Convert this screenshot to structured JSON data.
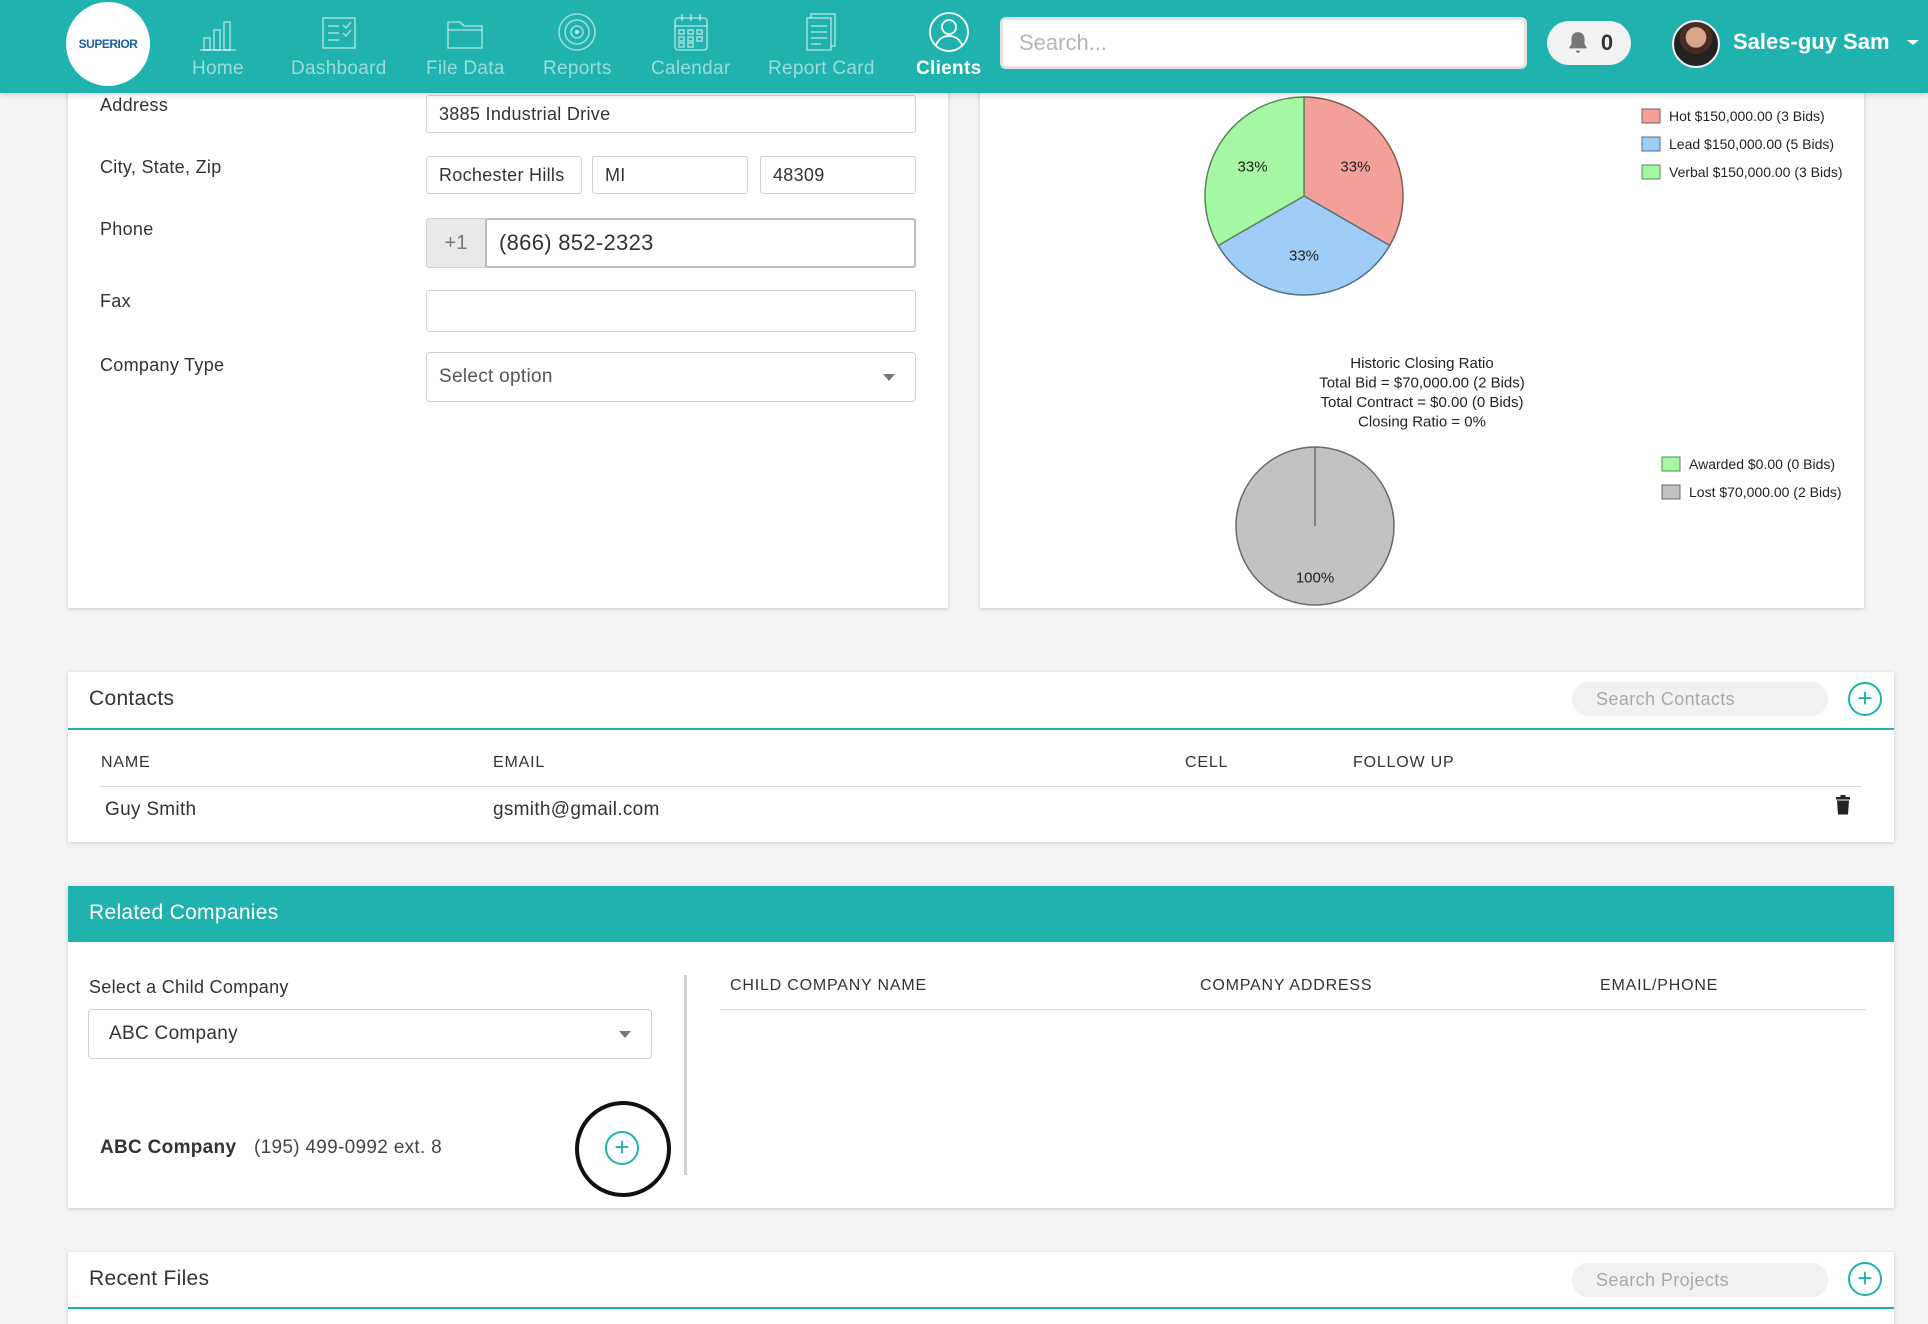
{
  "nav": {
    "logo_text": "SUPERIOR",
    "items": [
      {
        "label": "Home",
        "icon": "bar-chart-icon"
      },
      {
        "label": "Dashboard",
        "icon": "clipboard-icon"
      },
      {
        "label": "File Data",
        "icon": "folder-icon"
      },
      {
        "label": "Reports",
        "icon": "target-icon"
      },
      {
        "label": "Calendar",
        "icon": "calendar-icon"
      },
      {
        "label": "Report Card",
        "icon": "document-icon"
      },
      {
        "label": "Clients",
        "icon": "user-icon"
      }
    ],
    "active": "Clients",
    "search_placeholder": "Search...",
    "notification_count": "0",
    "user_name": "Sales-guy Sam",
    "accent_color": "#1fb2ae"
  },
  "company_form": {
    "address_label": "Address",
    "address_value": "3885 Industrial Drive",
    "city_state_zip_label": "City, State, Zip",
    "city_value": "Rochester Hills",
    "state_value": "MI",
    "zip_value": "48309",
    "phone_label": "Phone",
    "phone_prefix": "+1",
    "phone_value": "(866) 852-2323",
    "fax_label": "Fax",
    "fax_value": "",
    "company_type_label": "Company Type",
    "company_type_value": "Select option"
  },
  "chart_data": [
    {
      "type": "pie",
      "categories": [
        "Hot",
        "Lead",
        "Verbal"
      ],
      "values": [
        33,
        33,
        33
      ],
      "labels": [
        "33%",
        "33%",
        "33%"
      ],
      "legend": [
        "Hot $150,000.00 (3 Bids)",
        "Lead $150,000.00 (5 Bids)",
        "Verbal $150,000.00 (3 Bids)"
      ],
      "colors": [
        "#f4a09a",
        "#9fcdf7",
        "#a5f7a4"
      ],
      "legend_placement": "top-right"
    },
    {
      "type": "pie",
      "title_lines": [
        "Historic Closing Ratio",
        "Total Bid = $70,000.00 (2 Bids)",
        "Total Contract = $0.00 (0 Bids)",
        "Closing Ratio = 0%"
      ],
      "categories": [
        "Awarded",
        "Lost"
      ],
      "values": [
        0,
        100
      ],
      "labels": [
        "",
        "100%"
      ],
      "legend": [
        "Awarded $0.00 (0 Bids)",
        "Lost $70,000.00 (2 Bids)"
      ],
      "colors": [
        "#a5f7a4",
        "#c2c2c2"
      ],
      "legend_placement": "right"
    }
  ],
  "contacts": {
    "title": "Contacts",
    "search_placeholder": "Search Contacts",
    "columns": [
      "NAME",
      "EMAIL",
      "CELL",
      "FOLLOW UP"
    ],
    "rows": [
      {
        "name": "Guy Smith",
        "email": "gsmith@gmail.com",
        "cell": "",
        "follow_up": ""
      }
    ]
  },
  "related": {
    "title": "Related Companies",
    "select_label": "Select a Child Company",
    "select_value": "ABC Company",
    "preview_name": "ABC Company",
    "preview_phone": "(195) 499-0992 ext. 8",
    "columns": [
      "CHILD COMPANY NAME",
      "COMPANY ADDRESS",
      "EMAIL/PHONE"
    ]
  },
  "recent_files": {
    "title": "Recent Files",
    "search_placeholder": "Search Projects"
  }
}
